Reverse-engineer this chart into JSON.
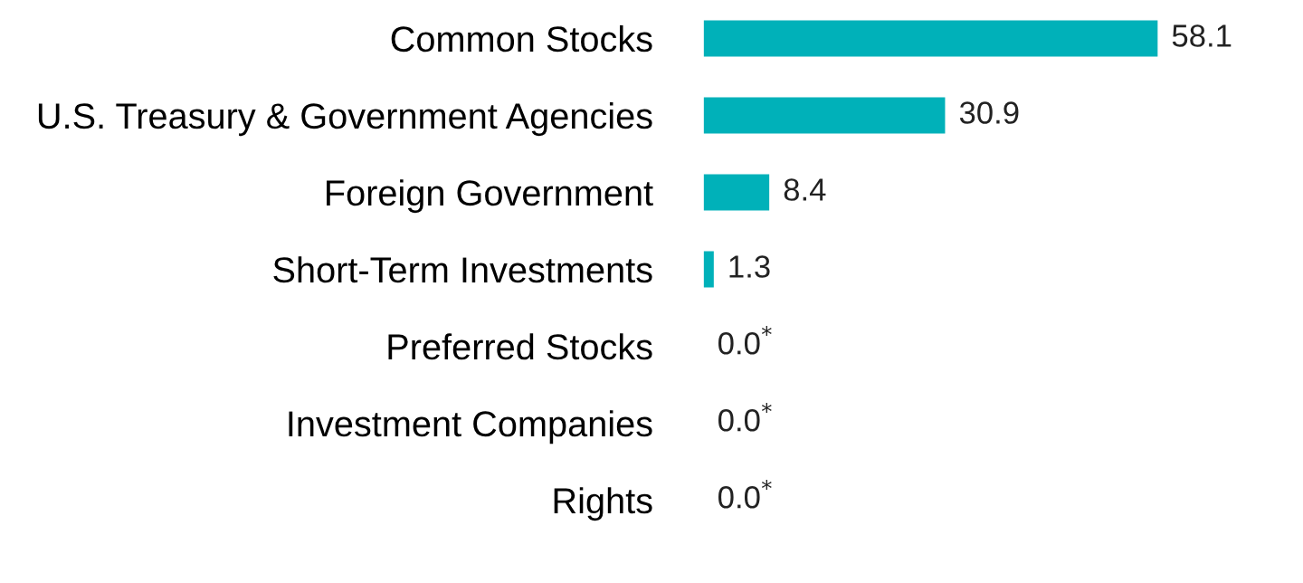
{
  "chart_data": {
    "type": "bar",
    "orientation": "horizontal",
    "categories": [
      "Common Stocks",
      "U.S. Treasury & Government Agencies",
      "Foreign Government",
      "Short-Term Investments",
      "Preferred Stocks",
      "Investment Companies",
      "Rights"
    ],
    "values": [
      58.1,
      30.9,
      8.4,
      1.3,
      0.0,
      0.0,
      0.0
    ],
    "value_labels": [
      "58.1",
      "30.9",
      "8.4",
      "1.3",
      "0.0$^{*}$",
      "0.0$^{*}$",
      "0.0$^{*}$"
    ],
    "color": "#00b1b9",
    "grid": false,
    "legend": false,
    "tick_labels": "y"
  }
}
